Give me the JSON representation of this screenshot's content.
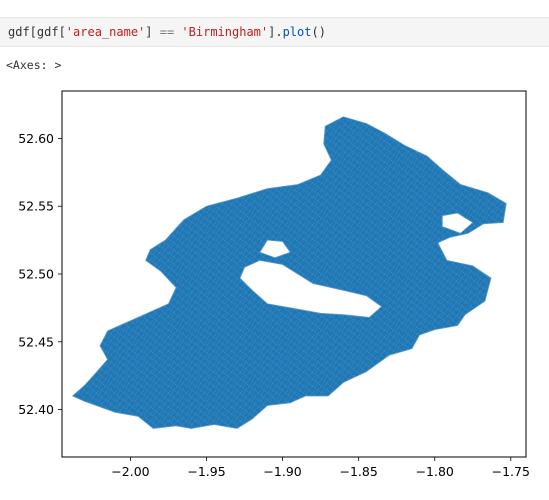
{
  "code_cell": {
    "tokens": [
      {
        "t": "gdf[gdf[",
        "c": "plain"
      },
      {
        "t": "'area_name'",
        "c": "str"
      },
      {
        "t": "] ",
        "c": "plain"
      },
      {
        "t": "==",
        "c": "op"
      },
      {
        "t": " ",
        "c": "plain"
      },
      {
        "t": "'Birmingham'",
        "c": "str"
      },
      {
        "t": "].",
        "c": "plain"
      },
      {
        "t": "plot",
        "c": "fn"
      },
      {
        "t": "()",
        "c": "plain"
      }
    ]
  },
  "output": {
    "text": "<Axes: >"
  },
  "chart_data": {
    "type": "map",
    "title": "",
    "xlabel": "",
    "ylabel": "",
    "xlim": [
      -2.045,
      -1.74
    ],
    "ylim": [
      52.365,
      52.635
    ],
    "xticks": [
      -2.0,
      -1.95,
      -1.9,
      -1.85,
      -1.8,
      -1.75
    ],
    "xtick_labels": [
      "−2.00",
      "−1.95",
      "−1.90",
      "−1.85",
      "−1.80",
      "−1.75"
    ],
    "yticks": [
      52.4,
      52.45,
      52.5,
      52.55,
      52.6
    ],
    "ytick_labels": [
      "52.40",
      "52.45",
      "52.50",
      "52.55",
      "52.60"
    ],
    "grid": false,
    "fill_color": "#1f77b4",
    "edge_color": "#5a9bd0",
    "outline": [
      [
        -2.03,
        52.406
      ],
      [
        -2.01,
        52.398
      ],
      [
        -1.995,
        52.395
      ],
      [
        -1.985,
        52.386
      ],
      [
        -1.97,
        52.388
      ],
      [
        -1.96,
        52.386
      ],
      [
        -1.945,
        52.389
      ],
      [
        -1.93,
        52.386
      ],
      [
        -1.92,
        52.393
      ],
      [
        -1.91,
        52.403
      ],
      [
        -1.895,
        52.405
      ],
      [
        -1.885,
        52.41
      ],
      [
        -1.87,
        52.41
      ],
      [
        -1.86,
        52.42
      ],
      [
        -1.845,
        52.428
      ],
      [
        -1.83,
        52.44
      ],
      [
        -1.815,
        52.445
      ],
      [
        -1.81,
        52.455
      ],
      [
        -1.8,
        52.459
      ],
      [
        -1.785,
        52.462
      ],
      [
        -1.78,
        52.47
      ],
      [
        -1.767,
        52.48
      ],
      [
        -1.763,
        52.497
      ],
      [
        -1.775,
        52.506
      ],
      [
        -1.792,
        52.51
      ],
      [
        -1.798,
        52.523
      ],
      [
        -1.79,
        52.527
      ],
      [
        -1.778,
        52.53
      ],
      [
        -1.768,
        52.537
      ],
      [
        -1.755,
        52.538
      ],
      [
        -1.753,
        52.552
      ],
      [
        -1.765,
        52.56
      ],
      [
        -1.783,
        52.566
      ],
      [
        -1.795,
        52.577
      ],
      [
        -1.805,
        52.587
      ],
      [
        -1.82,
        52.595
      ],
      [
        -1.833,
        52.604
      ],
      [
        -1.845,
        52.611
      ],
      [
        -1.86,
        52.616
      ],
      [
        -1.872,
        52.609
      ],
      [
        -1.873,
        52.596
      ],
      [
        -1.868,
        52.584
      ],
      [
        -1.875,
        52.573
      ],
      [
        -1.89,
        52.566
      ],
      [
        -1.91,
        52.563
      ],
      [
        -1.93,
        52.556
      ],
      [
        -1.95,
        52.55
      ],
      [
        -1.965,
        52.54
      ],
      [
        -1.977,
        52.525
      ],
      [
        -1.987,
        52.518
      ],
      [
        -1.99,
        52.51
      ],
      [
        -1.98,
        52.502
      ],
      [
        -1.97,
        52.49
      ],
      [
        -1.975,
        52.478
      ],
      [
        -1.995,
        52.468
      ],
      [
        -2.015,
        52.458
      ],
      [
        -2.02,
        52.447
      ],
      [
        -2.015,
        52.437
      ],
      [
        -2.022,
        52.428
      ],
      [
        -2.03,
        52.418
      ],
      [
        -2.038,
        52.41
      ]
    ],
    "holes": [
      [
        [
          -1.925,
          52.505
        ],
        [
          -1.915,
          52.51
        ],
        [
          -1.9,
          52.507
        ],
        [
          -1.88,
          52.493
        ],
        [
          -1.86,
          52.488
        ],
        [
          -1.845,
          52.484
        ],
        [
          -1.835,
          52.476
        ],
        [
          -1.843,
          52.468
        ],
        [
          -1.86,
          52.47
        ],
        [
          -1.875,
          52.471
        ],
        [
          -1.89,
          52.474
        ],
        [
          -1.91,
          52.478
        ],
        [
          -1.92,
          52.488
        ],
        [
          -1.928,
          52.497
        ]
      ],
      [
        [
          -1.91,
          52.525
        ],
        [
          -1.9,
          52.524
        ],
        [
          -1.895,
          52.516
        ],
        [
          -1.905,
          52.512
        ],
        [
          -1.915,
          52.516
        ]
      ],
      [
        [
          -1.795,
          52.543
        ],
        [
          -1.785,
          52.545
        ],
        [
          -1.775,
          52.538
        ],
        [
          -1.783,
          52.53
        ],
        [
          -1.795,
          52.535
        ]
      ]
    ]
  }
}
